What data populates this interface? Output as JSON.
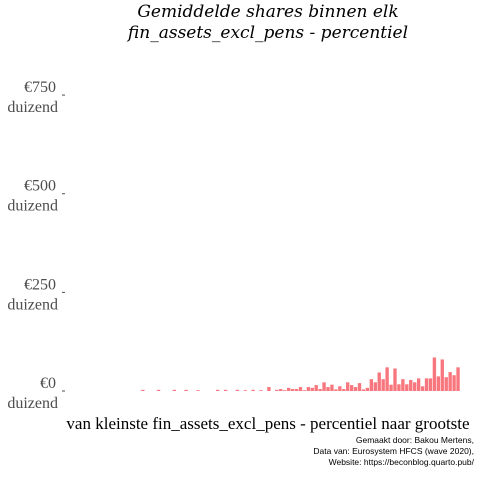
{
  "chart_data": {
    "type": "bar",
    "title": [
      "Gemiddelde shares binnen elk",
      "fin_assets_excl_pens - percentiel"
    ],
    "xlabel": "van kleinste fin_assets_excl_pens - percentiel naar grootste",
    "ylabel": "",
    "ylim": [
      0,
      920
    ],
    "yticks": [
      {
        "value": 0,
        "line1": "€0",
        "line2": "duizend"
      },
      {
        "value": 250,
        "line1": "€250",
        "line2": "duizend"
      },
      {
        "value": 500,
        "line1": "€500",
        "line2": "duizend"
      },
      {
        "value": 750,
        "line1": "€750",
        "line2": "duizend"
      }
    ],
    "bar_color": "#f8767d",
    "x": [
      1,
      2,
      3,
      4,
      5,
      6,
      7,
      8,
      9,
      10,
      11,
      12,
      13,
      14,
      15,
      16,
      17,
      18,
      19,
      20,
      21,
      22,
      23,
      24,
      25,
      26,
      27,
      28,
      29,
      30,
      31,
      32,
      33,
      34,
      35,
      36,
      37,
      38,
      39,
      40,
      41,
      42,
      43,
      44,
      45,
      46,
      47,
      48,
      49,
      50,
      51,
      52,
      53,
      54,
      55,
      56,
      57,
      58,
      59,
      60,
      61,
      62,
      63,
      64,
      65,
      66,
      67,
      68,
      69,
      70,
      71,
      72,
      73,
      74,
      75,
      76,
      77,
      78,
      79,
      80,
      81,
      82,
      83,
      84,
      85,
      86,
      87,
      88,
      89,
      90,
      91,
      92,
      93,
      94,
      95,
      96,
      97,
      98,
      99,
      100
    ],
    "values": [
      0,
      0,
      0,
      0,
      0,
      0,
      0,
      0,
      0,
      0,
      0,
      0,
      0,
      0,
      0,
      0,
      0,
      0,
      0,
      3,
      0,
      0,
      0,
      3,
      0,
      0,
      0,
      3,
      0,
      0,
      3,
      0,
      0,
      2,
      0,
      0,
      0,
      0,
      3,
      0,
      3,
      0,
      0,
      3,
      0,
      2,
      0,
      3,
      0,
      2,
      0,
      10,
      0,
      3,
      5,
      2,
      8,
      5,
      5,
      10,
      2,
      10,
      8,
      15,
      5,
      22,
      10,
      16,
      4,
      12,
      5,
      22,
      15,
      10,
      20,
      4,
      8,
      30,
      22,
      47,
      30,
      60,
      16,
      57,
      17,
      30,
      17,
      28,
      22,
      32,
      12,
      32,
      32,
      85,
      37,
      80,
      35,
      48,
      40,
      60
    ]
  },
  "caption": [
    "Gemaakt door: Bakou Mertens,",
    "Data van: Eurosystem HFCS (wave 2020),",
    "Website: https://beconblog.quarto.pub/"
  ]
}
